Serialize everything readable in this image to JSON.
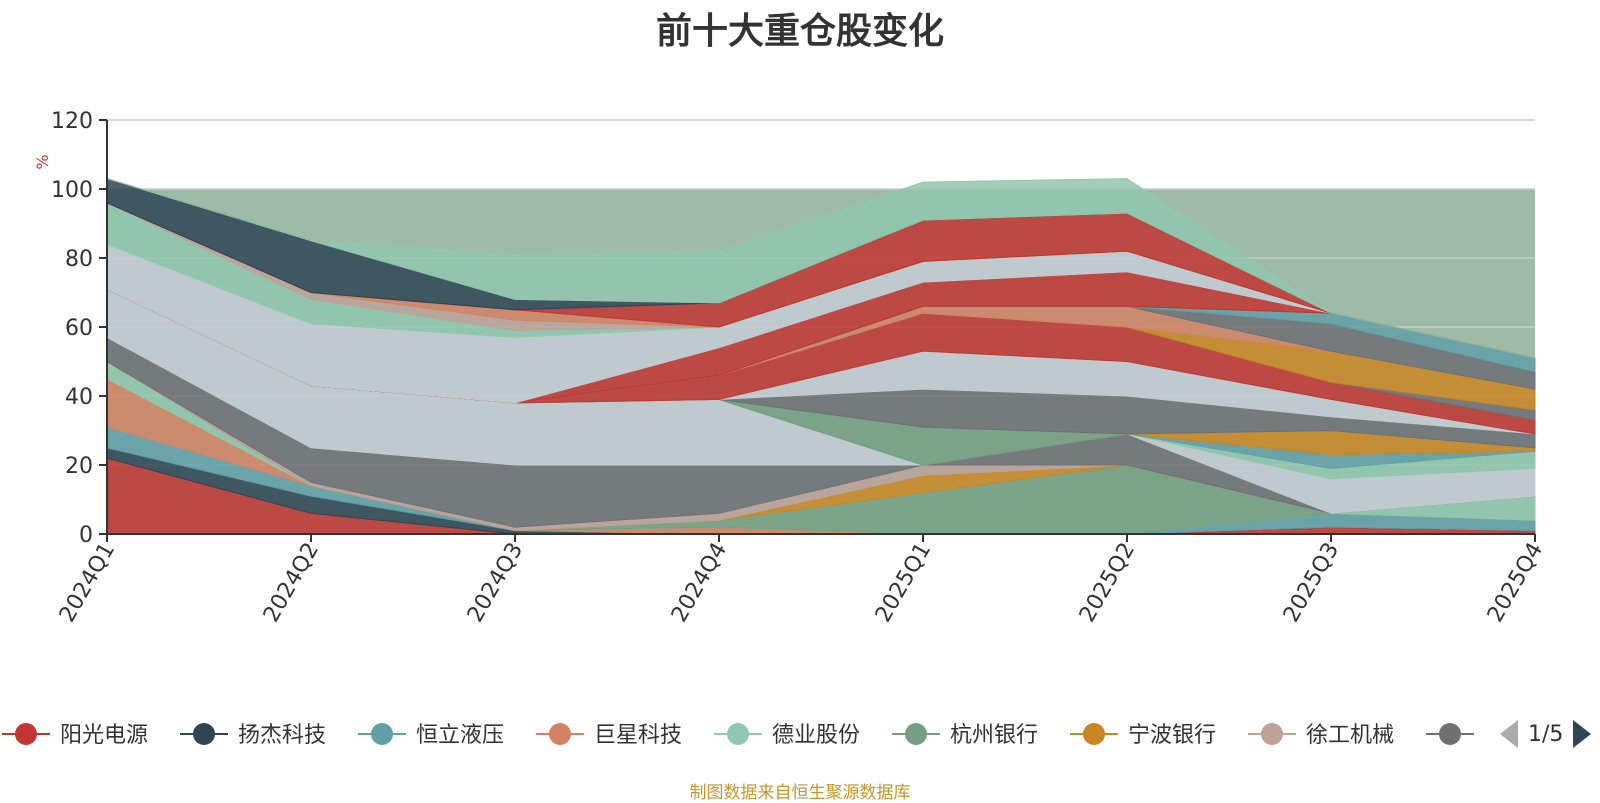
{
  "chart_data": {
    "type": "area",
    "title": "前十大重仓股变化",
    "ylabel": "%",
    "ylim": [
      0,
      120
    ],
    "yticks": [
      0,
      20,
      40,
      60,
      80,
      100,
      120
    ],
    "grid": true,
    "stacked": true,
    "x": [
      "2024Q1",
      "2024Q2",
      "2024Q3",
      "2024Q4",
      "2025Q1",
      "2025Q2",
      "2025Q3",
      "2025Q4"
    ],
    "background_band": {
      "from": 0,
      "to": 100,
      "color": "#9dbba6"
    },
    "series": [
      {
        "name": "阳光电源",
        "color": "#c23531",
        "values": [
          22,
          6,
          0,
          0,
          0,
          0,
          2,
          1
        ]
      },
      {
        "name": "扬杰科技",
        "color": "#2f4554",
        "values": [
          3,
          5,
          1,
          0,
          0,
          0,
          0,
          0
        ]
      },
      {
        "name": "恒立液压",
        "color": "#61a0a8",
        "values": [
          6,
          3,
          0,
          0,
          0,
          0,
          4,
          3
        ]
      },
      {
        "name": "巨星科技",
        "color": "#d48265",
        "values": [
          14,
          0,
          0,
          2,
          0,
          0,
          0,
          0
        ]
      },
      {
        "name": "德业股份",
        "color": "#91c7ae",
        "values": [
          5,
          0,
          0,
          0,
          0,
          0,
          0,
          7
        ]
      },
      {
        "name": "杭州银行",
        "color": "#749f83",
        "values": [
          0,
          0,
          0,
          2,
          12,
          20,
          0,
          0
        ]
      },
      {
        "name": "宁波银行",
        "color": "#ca8622",
        "values": [
          0,
          0,
          0,
          0,
          5,
          0,
          0,
          0
        ]
      },
      {
        "name": "徐工机械",
        "color": "#bda29a",
        "values": [
          0,
          1,
          1,
          2,
          3,
          0,
          0,
          0
        ]
      },
      {
        "name": "",
        "color": "#6e7074",
        "values": [
          7,
          10,
          18,
          14,
          0,
          9,
          0,
          0
        ]
      },
      {
        "name": "",
        "color": "#c4ccd3",
        "values": [
          14,
          18,
          18,
          19,
          0,
          0,
          10,
          8
        ]
      },
      {
        "name": "",
        "color": "#91c7ae",
        "values": [
          0,
          0,
          0,
          0,
          0,
          0,
          3,
          5
        ]
      },
      {
        "name": "",
        "color": "#61a0a8",
        "values": [
          0,
          0,
          0,
          0,
          0,
          0,
          4,
          0
        ]
      },
      {
        "name": "",
        "color": "#ca8622",
        "values": [
          0,
          0,
          0,
          0,
          0,
          0,
          7,
          1
        ]
      },
      {
        "name": "",
        "color": "#749f83",
        "values": [
          0,
          0,
          0,
          0,
          11,
          0,
          0,
          0
        ]
      },
      {
        "name": "",
        "color": "#6e7074",
        "values": [
          0,
          0,
          0,
          0,
          11,
          11,
          4,
          4
        ]
      },
      {
        "name": "",
        "color": "#c4ccd3",
        "values": [
          0,
          0,
          0,
          0,
          11,
          10,
          5,
          0
        ]
      },
      {
        "name": "",
        "color": "#c23531",
        "values": [
          0,
          0,
          0,
          7,
          11,
          10,
          5,
          4
        ]
      },
      {
        "name": "",
        "color": "#6e7074",
        "values": [
          0,
          0,
          0,
          0,
          0,
          0,
          0,
          3
        ]
      },
      {
        "name": "",
        "color": "#ca8622",
        "values": [
          0,
          0,
          0,
          0,
          0,
          0,
          9,
          6
        ]
      },
      {
        "name": "",
        "color": "#d48265",
        "values": [
          0,
          0,
          0,
          0,
          2,
          6,
          0,
          0
        ]
      },
      {
        "name": "",
        "color": "#6e7074",
        "values": [
          0,
          0,
          0,
          0,
          0,
          0,
          8,
          5
        ]
      },
      {
        "name": "",
        "color": "#61a0a8",
        "values": [
          0,
          0,
          0,
          0,
          0,
          0,
          3,
          4
        ]
      },
      {
        "name": "",
        "color": "#749f83",
        "values": [
          0,
          0,
          0,
          0,
          0,
          0,
          0,
          0
        ]
      },
      {
        "name": "",
        "color": "#c23531",
        "values": [
          0,
          0,
          0,
          8,
          7,
          10,
          0,
          0
        ]
      },
      {
        "name": "",
        "color": "#c4ccd3",
        "values": [
          13,
          18,
          19,
          6,
          6,
          6,
          0,
          0
        ]
      },
      {
        "name": "",
        "color": "#91c7ae",
        "values": [
          12,
          7,
          2,
          0,
          0,
          0,
          0,
          0
        ]
      },
      {
        "name": "",
        "color": "#bda29a",
        "values": [
          0,
          2,
          3,
          0,
          0,
          0,
          0,
          0
        ]
      },
      {
        "name": "",
        "color": "#d48265",
        "values": [
          0,
          0,
          3,
          0,
          0,
          0,
          0,
          0
        ]
      },
      {
        "name": "",
        "color": "#c23531",
        "values": [
          0,
          0,
          0,
          7,
          12,
          11,
          0,
          0
        ]
      },
      {
        "name": "",
        "color": "#2f4554",
        "values": [
          7,
          15,
          3,
          0,
          0,
          0,
          0,
          0
        ]
      },
      {
        "name": "",
        "color": "#91c7ae",
        "values": [
          0,
          0,
          13,
          15,
          11,
          10,
          0,
          0
        ]
      }
    ]
  },
  "legend": {
    "visible_items": [
      {
        "name": "阳光电源",
        "color": "#c23531"
      },
      {
        "name": "扬杰科技",
        "color": "#2f4554"
      },
      {
        "name": "恒立液压",
        "color": "#61a0a8"
      },
      {
        "name": "巨星科技",
        "color": "#d48265"
      },
      {
        "name": "德业股份",
        "color": "#91c7ae"
      },
      {
        "name": "杭州银行",
        "color": "#749f83"
      },
      {
        "name": "宁波银行",
        "color": "#ca8622"
      },
      {
        "name": "徐工机械",
        "color": "#bda29a"
      },
      {
        "name": "",
        "color": "#6e7074"
      }
    ],
    "page_label": "1/5",
    "prev_icon": "triangle-left-icon",
    "next_icon": "triangle-right-icon"
  },
  "source_note": "制图数据来自恒生聚源数据库",
  "colors": {
    "axis": "#333333",
    "grid": "#cccccc",
    "ylabel": "#e03030",
    "note": "#c8952a"
  }
}
